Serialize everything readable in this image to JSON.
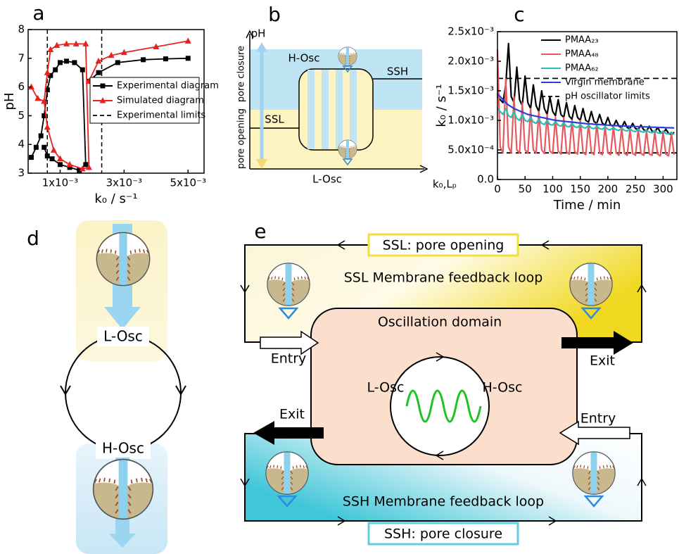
{
  "chart_data": [
    {
      "type": "line",
      "panel_label": "a",
      "ylabel": "pH",
      "xlabel": "k₀ / s⁻¹",
      "xlim": [
        0,
        0.0055
      ],
      "ylim": [
        3,
        8
      ],
      "xticks": [
        {
          "value": 0.001,
          "label": "1x10⁻³"
        },
        {
          "value": 0.003,
          "label": "3x10⁻³"
        },
        {
          "value": 0.005,
          "label": "5x10⁻³"
        }
      ],
      "yticks": [
        3,
        4,
        5,
        6,
        7,
        8
      ],
      "legend": "right",
      "legend_frame": true,
      "series": [
        {
          "name": "Experimental diagram",
          "color": "#000000",
          "marker": "square",
          "x": [
            0.0001,
            0.00025,
            0.0004,
            0.0005,
            0.0006,
            0.0007,
            0.00085,
            0.001,
            0.0012,
            0.00145,
            0.0017,
            0.0018,
            0.0016,
            0.0013,
            0.001,
            0.00075,
            0.0006,
            0.0005,
            0.0019,
            0.0019,
            0.0022,
            0.0028,
            0.0036,
            0.0043,
            0.005
          ],
          "values": [
            3.55,
            3.9,
            4.3,
            5.0,
            5.9,
            6.4,
            6.6,
            6.85,
            6.9,
            6.85,
            6.6,
            3.3,
            3.1,
            3.2,
            3.3,
            3.5,
            3.6,
            3.9,
            null,
            6.2,
            6.5,
            6.85,
            6.95,
            6.98,
            7.0
          ]
        },
        {
          "name": "Simulated diagram",
          "color": "#e8231f",
          "marker": "triangle",
          "x": [
            0.0001,
            0.0003,
            0.0005,
            0.0006,
            0.0007,
            0.0009,
            0.0012,
            0.0015,
            0.0018,
            0.0019,
            0.0017,
            0.0013,
            0.001,
            0.0008,
            0.0006,
            0.0005,
            0.0019,
            0.0019,
            0.0022,
            0.0026,
            0.003,
            0.004,
            0.005
          ],
          "values": [
            6.0,
            5.6,
            5.5,
            6.5,
            7.3,
            7.45,
            7.5,
            7.5,
            7.5,
            3.2,
            3.15,
            3.3,
            3.5,
            3.8,
            4.6,
            5.5,
            null,
            6.2,
            6.9,
            7.1,
            7.2,
            7.4,
            7.6
          ]
        }
      ],
      "limit_lines": {
        "name": "Experimental limits",
        "color": "#000000",
        "x": [
          0.0006,
          0.0023
        ]
      }
    },
    {
      "type": "line",
      "panel_label": "c",
      "ylabel": "k₀ / s⁻¹",
      "xlabel": "Time / min",
      "xlim": [
        0,
        325
      ],
      "ylim": [
        0,
        0.0025
      ],
      "xticks": [
        0,
        50,
        100,
        150,
        200,
        250,
        300
      ],
      "yticks": [
        {
          "value": 0,
          "label": "0.0"
        },
        {
          "value": 0.0005,
          "label": "5.0x10⁻⁴"
        },
        {
          "value": 0.001,
          "label": "1.0x10⁻³"
        },
        {
          "value": 0.0015,
          "label": "1.5x10⁻³"
        },
        {
          "value": 0.002,
          "label": "2.0x10⁻³"
        },
        {
          "value": 0.0025,
          "label": "2.5x10⁻³"
        }
      ],
      "legend": "top right",
      "legend_frame": false,
      "x": [
        0,
        5,
        10,
        15,
        20,
        25,
        30,
        35,
        40,
        45,
        50,
        55,
        60,
        65,
        70,
        75,
        80,
        85,
        90,
        95,
        100,
        105,
        110,
        115,
        120,
        125,
        130,
        135,
        140,
        145,
        150,
        155,
        160,
        165,
        170,
        175,
        180,
        185,
        190,
        195,
        200,
        205,
        210,
        215,
        220,
        225,
        230,
        235,
        240,
        245,
        250,
        255,
        260,
        265,
        270,
        275,
        280,
        285,
        290,
        295,
        300,
        305,
        310,
        315,
        320
      ],
      "series": [
        {
          "name": "PMAA₂₃",
          "color": "#000000",
          "values": [
            0.0014,
            0.00135,
            0.0013,
            0.0016,
            0.0023,
            0.0014,
            0.0013,
            0.0019,
            0.00135,
            0.00125,
            0.00175,
            0.0013,
            0.0012,
            0.0016,
            0.00125,
            0.00115,
            0.0015,
            0.0012,
            0.0011,
            0.0014,
            0.00115,
            0.00108,
            0.00135,
            0.0011,
            0.00105,
            0.0013,
            0.00107,
            0.00102,
            0.00125,
            0.00105,
            0.001,
            0.0012,
            0.001,
            0.00097,
            0.00115,
            0.00098,
            0.00095,
            0.0011,
            0.00095,
            0.00092,
            0.00105,
            0.00092,
            0.0009,
            0.001,
            0.0009,
            0.00088,
            0.00098,
            0.00088,
            0.00086,
            0.00095,
            0.00086,
            0.00085,
            0.00092,
            0.00084,
            0.00082,
            0.0009,
            0.00082,
            0.0008,
            0.00088,
            0.0008,
            0.00078,
            0.00085,
            0.00078,
            0.00076,
            0.0008
          ]
        },
        {
          "name": "PMAA₄₈",
          "color": "#e8595e",
          "values": [
            0.0022,
            0.00055,
            0.00045,
            0.0017,
            0.00055,
            0.00045,
            0.0014,
            0.0005,
            0.00045,
            0.0013,
            0.0005,
            0.00045,
            0.0012,
            0.0005,
            0.00045,
            0.00115,
            0.0005,
            0.00044,
            0.0011,
            0.00048,
            0.00044,
            0.00105,
            0.00048,
            0.00043,
            0.00105,
            0.00047,
            0.00043,
            0.001,
            0.00047,
            0.00043,
            0.001,
            0.00046,
            0.00042,
            0.00095,
            0.00046,
            0.00042,
            0.00095,
            0.00045,
            0.00042,
            0.0009,
            0.00045,
            0.00042,
            0.0009,
            0.00045,
            0.00041,
            0.00088,
            0.00044,
            0.00041,
            0.00085,
            0.00044,
            0.00041,
            0.00085,
            0.00044,
            0.00041,
            0.00082,
            0.00043,
            0.00041,
            0.0008,
            0.00043,
            0.0004,
            0.0008,
            0.00043,
            0.0004,
            0.00078,
            0.00042
          ]
        },
        {
          "name": "PMAA₆₂",
          "color": "#2bbfb3",
          "values": [
            0.0012,
            0.00115,
            0.0011,
            0.0012,
            0.00108,
            0.00105,
            0.00115,
            0.00103,
            0.001,
            0.0011,
            0.001,
            0.00098,
            0.00105,
            0.00097,
            0.00095,
            0.00102,
            0.00095,
            0.00093,
            0.001,
            0.00093,
            0.00092,
            0.00098,
            0.00092,
            0.0009,
            0.00096,
            0.0009,
            0.00089,
            0.00095,
            0.00089,
            0.00088,
            0.00093,
            0.00088,
            0.00087,
            0.00092,
            0.00087,
            0.00086,
            0.0009,
            0.00086,
            0.00085,
            0.00089,
            0.00085,
            0.00084,
            0.00088,
            0.00084,
            0.00083,
            0.00087,
            0.00083,
            0.00082,
            0.00086,
            0.00082,
            0.00081,
            0.00085,
            0.00081,
            0.0008,
            0.00084,
            0.0008,
            0.00079,
            0.00083,
            0.00079,
            0.00078,
            0.00082,
            0.00078,
            0.00077,
            0.0008,
            0.00076
          ]
        },
        {
          "name": "Virgin membrane",
          "color": "#2c3fd6",
          "values": [
            0.00145,
            0.0014,
            0.00135,
            0.0013,
            0.00126,
            0.00123,
            0.0012,
            0.00118,
            0.00116,
            0.00114,
            0.00112,
            0.0011,
            0.00109,
            0.00108,
            0.00107,
            0.00106,
            0.00105,
            0.00104,
            0.00103,
            0.00102,
            0.00101,
            0.001,
            0.000995,
            0.00099,
            0.000985,
            0.00098,
            0.000975,
            0.00097,
            0.000965,
            0.00096,
            0.000955,
            0.00095,
            0.000945,
            0.00094,
            0.00094,
            0.000935,
            0.00093,
            0.00093,
            0.000925,
            0.00092,
            0.00092,
            0.000915,
            0.000915,
            0.00091,
            0.00091,
            0.000905,
            0.000905,
            0.0009,
            0.0009,
            0.0009,
            0.000895,
            0.000895,
            0.00089,
            0.00089,
            0.00089,
            0.000885,
            0.000885,
            0.000885,
            0.00088,
            0.00088,
            0.00088,
            0.000875,
            0.000875,
            0.000875,
            0.00087
          ]
        }
      ],
      "limit_lines": {
        "name": "pH oscillator limits",
        "color": "#000000",
        "y": [
          0.00171,
          0.00045
        ]
      }
    }
  ],
  "panel_b": {
    "panel_label": "b",
    "axis_y": "pH",
    "axis_x": "k₀,Lₚ",
    "arrow_labels": [
      "pore opening",
      "pore closure"
    ],
    "h_osc": "H-Osc",
    "l_osc": "L-Osc",
    "ssh": "SSH",
    "ssl": "SSL"
  },
  "panel_d": {
    "panel_label": "d",
    "l_osc": "L-Osc",
    "h_osc": "H-Osc"
  },
  "panel_e": {
    "panel_label": "e",
    "ssl_box": "SSL: pore opening",
    "ssl_loop": "SSL Membrane feedback loop",
    "domain": "Oscillation domain",
    "entry_top": "Entry",
    "exit_top": "Exit",
    "l_osc": "L-Osc",
    "h_osc": "H-Osc",
    "exit_bottom": "Exit",
    "entry_bottom": "Entry",
    "ssh_loop": "SSH Membrane feedback loop",
    "ssh_box": "SSH: pore closure"
  }
}
